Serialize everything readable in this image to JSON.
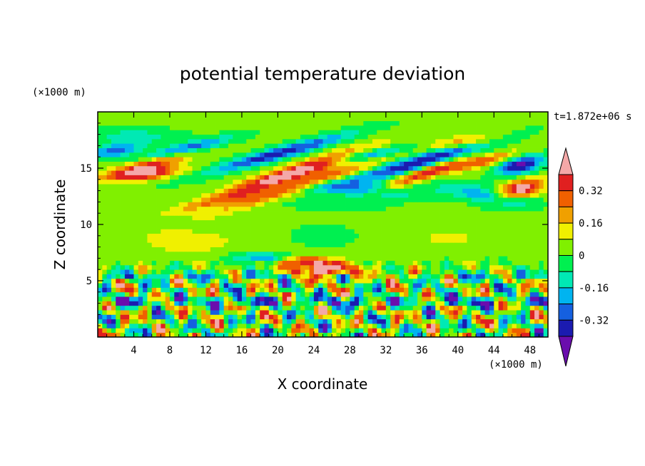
{
  "chart_data": {
    "type": "heatmap",
    "title": "potential temperature deviation",
    "xlabel": "X coordinate",
    "ylabel": "Z coordinate",
    "x_unit": "(×1000 m)",
    "y_unit": "(×1000 m)",
    "time_label": "t=1.872e+06 s",
    "xlim": [
      0,
      50
    ],
    "ylim": [
      0,
      20
    ],
    "x_ticks": [
      4,
      8,
      12,
      16,
      20,
      24,
      28,
      32,
      36,
      40,
      44,
      48
    ],
    "y_ticks": [
      5,
      10,
      15
    ],
    "colorbar": {
      "levels": [
        -0.4,
        -0.32,
        -0.24,
        -0.16,
        -0.08,
        0,
        0.08,
        0.16,
        0.24,
        0.32,
        0.4
      ],
      "tick_labels": [
        "0.32",
        "0.16",
        "0",
        "-0.16",
        "-0.32"
      ],
      "tick_values": [
        0.32,
        0.16,
        0,
        -0.16,
        -0.32
      ],
      "colors_low_to_high": [
        "#6a0dad",
        "#1b1bb0",
        "#1560e0",
        "#00b4f0",
        "#00e9b4",
        "#00f050",
        "#80f000",
        "#f0f000",
        "#f0a000",
        "#f06000",
        "#e02020",
        "#f4a8a8"
      ]
    },
    "features": [
      {
        "x": 22,
        "z": 14.7,
        "rx": 8,
        "rz": 0.65,
        "angle": -14,
        "amp": 0.5
      },
      {
        "x": 23,
        "z": 13.6,
        "rx": 10,
        "rz": 0.6,
        "angle": -14,
        "amp": 0.3
      },
      {
        "x": 5,
        "z": 14.5,
        "rx": 4,
        "rz": 0.55,
        "angle": -5,
        "amp": 0.42
      },
      {
        "x": 6,
        "z": 15.4,
        "rx": 4.5,
        "rz": 0.55,
        "angle": -10,
        "amp": 0.3
      },
      {
        "x": 20,
        "z": 16.3,
        "rx": 8,
        "rz": 0.55,
        "angle": -12,
        "amp": -0.4
      },
      {
        "x": 10,
        "z": 16.8,
        "rx": 5,
        "rz": 0.5,
        "angle": -10,
        "amp": -0.3
      },
      {
        "x": 2,
        "z": 16.6,
        "rx": 3,
        "rz": 0.6,
        "angle": -8,
        "amp": -0.3
      },
      {
        "x": 36,
        "z": 15.6,
        "rx": 8,
        "rz": 0.65,
        "angle": -12,
        "amp": -0.42
      },
      {
        "x": 30,
        "z": 16.2,
        "rx": 5,
        "rz": 0.5,
        "angle": -8,
        "amp": -0.3
      },
      {
        "x": 24,
        "z": 13.6,
        "rx": 9,
        "rz": 0.5,
        "angle": -10,
        "amp": -0.05
      },
      {
        "x": 28,
        "z": 13.3,
        "rx": 5,
        "rz": 0.6,
        "angle": 0,
        "amp": -0.22
      },
      {
        "x": 32,
        "z": 12.6,
        "rx": 4,
        "rz": 0.5,
        "angle": 0,
        "amp": -0.12
      },
      {
        "x": 36,
        "z": 14.5,
        "rx": 5,
        "rz": 0.5,
        "angle": -18,
        "amp": 0.3
      },
      {
        "x": 42,
        "z": 15.5,
        "rx": 5,
        "rz": 0.5,
        "angle": -10,
        "amp": 0.3
      },
      {
        "x": 41,
        "z": 17.4,
        "rx": 4,
        "rz": 0.5,
        "angle": -5,
        "amp": 0.2
      },
      {
        "x": 47,
        "z": 15.3,
        "rx": 2.5,
        "rz": 0.8,
        "angle": -10,
        "amp": -0.45
      },
      {
        "x": 47,
        "z": 13.2,
        "rx": 2.5,
        "rz": 0.8,
        "angle": -10,
        "amp": 0.45
      },
      {
        "x": 46,
        "z": 11.9,
        "rx": 3,
        "rz": 0.6,
        "angle": 0,
        "amp": -0.15
      },
      {
        "x": 43,
        "z": 12.6,
        "rx": 3,
        "rz": 0.5,
        "angle": 0,
        "amp": -0.2
      },
      {
        "x": 4,
        "z": 17.9,
        "rx": 5,
        "rz": 0.6,
        "angle": 0,
        "amp": -0.14
      },
      {
        "x": 14,
        "z": 12.2,
        "rx": 6,
        "rz": 0.5,
        "angle": -10,
        "amp": 0.18
      },
      {
        "x": 27,
        "z": 11.8,
        "rx": 5,
        "rz": 0.5,
        "angle": 0,
        "amp": -0.1
      },
      {
        "x": 40,
        "z": 13.2,
        "rx": 4,
        "rz": 0.6,
        "angle": 0,
        "amp": -0.14
      },
      {
        "x": 25,
        "z": 6.0,
        "rx": 3.5,
        "rz": 0.7,
        "angle": 0,
        "amp": 0.5
      },
      {
        "x": 23,
        "z": 6.8,
        "rx": 2.5,
        "rz": 0.4,
        "angle": 0,
        "amp": 0.3
      },
      {
        "x": 33,
        "z": 5.5,
        "rx": 3,
        "rz": 0.4,
        "angle": 0,
        "amp": 0.25
      },
      {
        "x": 18,
        "z": 7.1,
        "rx": 3,
        "rz": 0.4,
        "angle": 0,
        "amp": -0.25
      },
      {
        "x": 25,
        "z": 9.0,
        "rx": 3,
        "rz": 0.8,
        "angle": 0,
        "amp": -0.1
      },
      {
        "x": 39,
        "z": 8.8,
        "rx": 3,
        "rz": 0.8,
        "angle": 0,
        "amp": 0.1
      },
      {
        "x": 10,
        "z": 8.5,
        "rx": 6,
        "rz": 1.2,
        "angle": 0,
        "amp": 0.1
      }
    ]
  }
}
